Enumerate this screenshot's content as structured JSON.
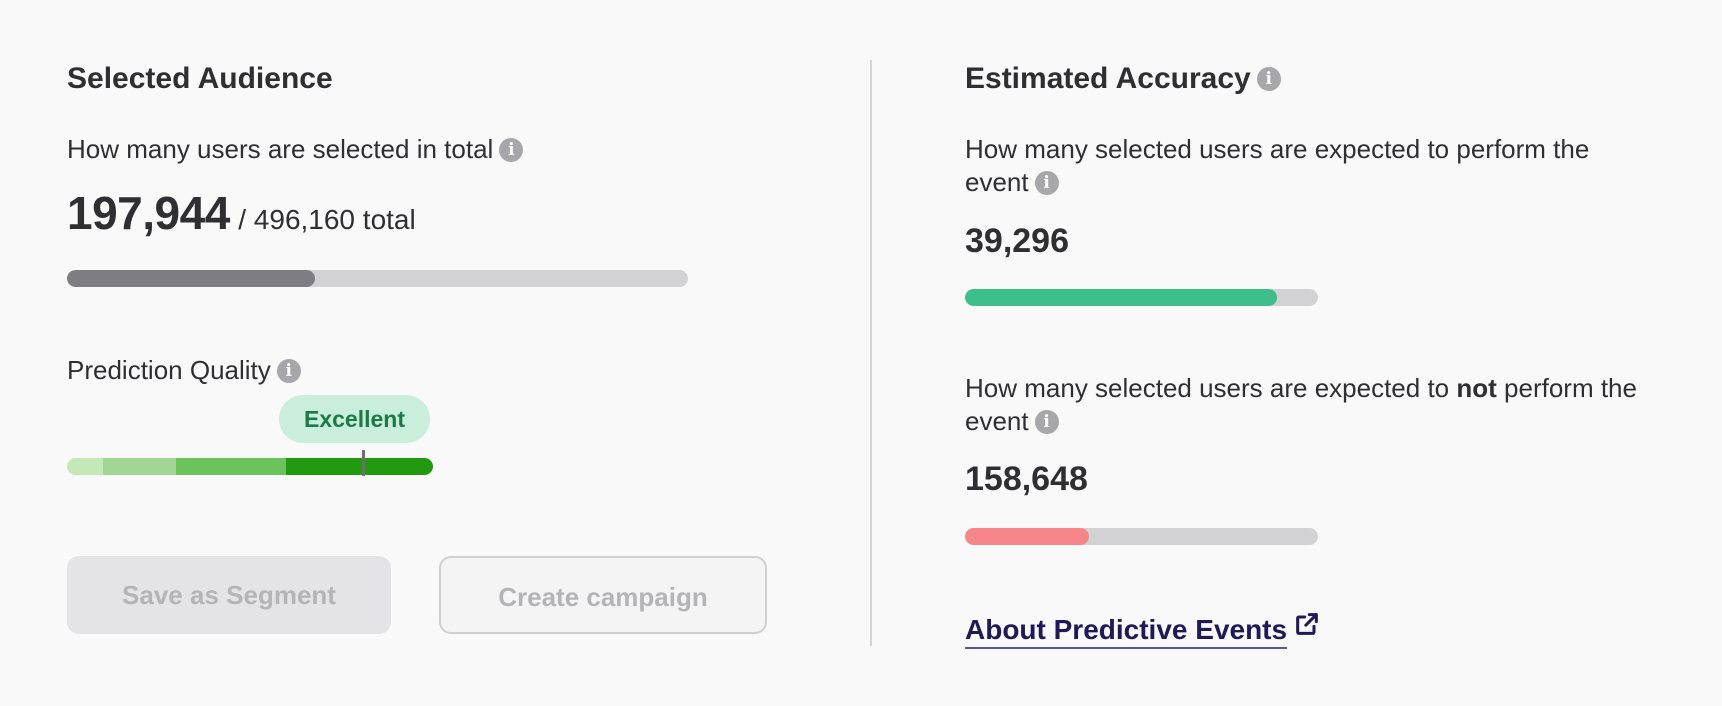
{
  "selected_audience": {
    "heading": "Selected Audience",
    "total_label": "How many users are selected in total",
    "selected_count": "197,944",
    "total_suffix": "/ 496,160 total",
    "selected_fraction": 0.399,
    "bar_color": "#7e7d83",
    "track_color": "#d2d2d4"
  },
  "prediction_quality": {
    "label": "Prediction Quality",
    "rating": "Excellent",
    "marker_fraction": 0.81,
    "segment_colors": [
      "#c4e8b8",
      "#a3d694",
      "#6cc25b",
      "#229a10"
    ]
  },
  "buttons": {
    "save_segment": "Save as Segment",
    "create_campaign": "Create campaign"
  },
  "estimated_accuracy": {
    "heading": "Estimated Accuracy",
    "perform": {
      "label": "How many selected users are expected to perform the event",
      "count": "39,296",
      "fraction": 0.885,
      "color": "#3dbe8a"
    },
    "not_perform": {
      "label_before": "How many selected users are expected to",
      "label_bold": "not",
      "label_after": "perform the event",
      "count": "158,648",
      "fraction": 0.352,
      "color": "#f6868a"
    }
  },
  "link": {
    "label": "About Predictive Events",
    "color": "#1e1a57"
  },
  "icons": {
    "info": "info-icon",
    "external": "external-link-icon",
    "info_glyph": "i"
  }
}
